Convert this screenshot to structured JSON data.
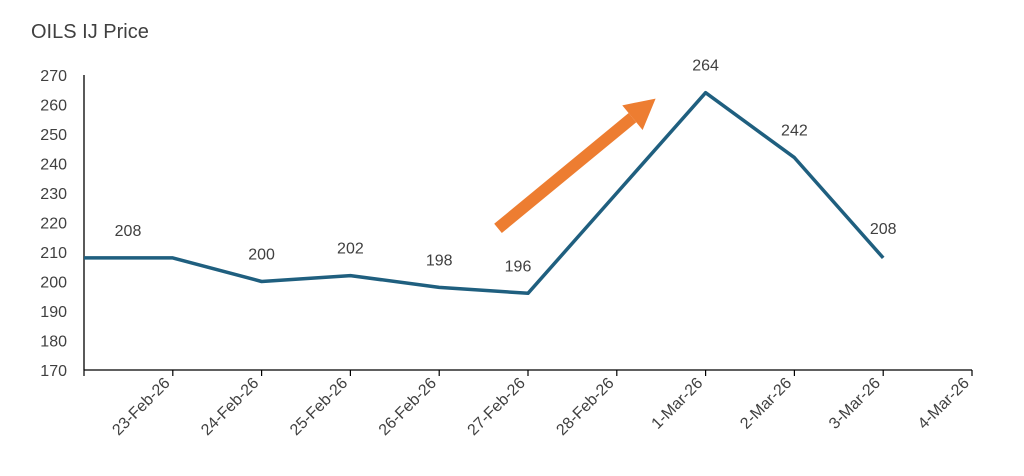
{
  "chart_data": {
    "type": "line",
    "title": "OILS IJ Price",
    "xlabel": "",
    "ylabel": "",
    "categories": [
      "23-Feb-26",
      "24-Feb-26",
      "25-Feb-26",
      "26-Feb-26",
      "27-Feb-26",
      "28-Feb-26",
      "1-Mar-26",
      "2-Mar-26",
      "3-Mar-26",
      "4-Mar-26"
    ],
    "series": [
      {
        "name": "",
        "color": "#1f5f7f",
        "points": [
          {
            "x": "23-Feb-26",
            "y": 208,
            "label": "208"
          },
          {
            "x": "24-Feb-26",
            "y": 208,
            "label": null
          },
          {
            "x": "25-Feb-26",
            "y": 200,
            "label": "200"
          },
          {
            "x": "26-Feb-26",
            "y": 202,
            "label": "202"
          },
          {
            "x": "27-Feb-26",
            "y": 198,
            "label": "198"
          },
          {
            "x": "28-Feb-26",
            "y": 196,
            "label": "196"
          },
          {
            "x": "1-Mar-26",
            "y": 230,
            "label": null
          },
          {
            "x": "2-Mar-26",
            "y": 264,
            "label": "264"
          },
          {
            "x": "3-Mar-26",
            "y": 242,
            "label": "242"
          },
          {
            "x": "4-Mar-26",
            "y": 208,
            "label": "208"
          }
        ]
      }
    ],
    "yticks": [
      170,
      180,
      190,
      200,
      210,
      220,
      230,
      240,
      250,
      260,
      270
    ],
    "ylim": [
      170,
      270
    ],
    "grid": false,
    "annotation": {
      "type": "arrow",
      "direction": "up-right",
      "color": "#ed7d31"
    }
  }
}
